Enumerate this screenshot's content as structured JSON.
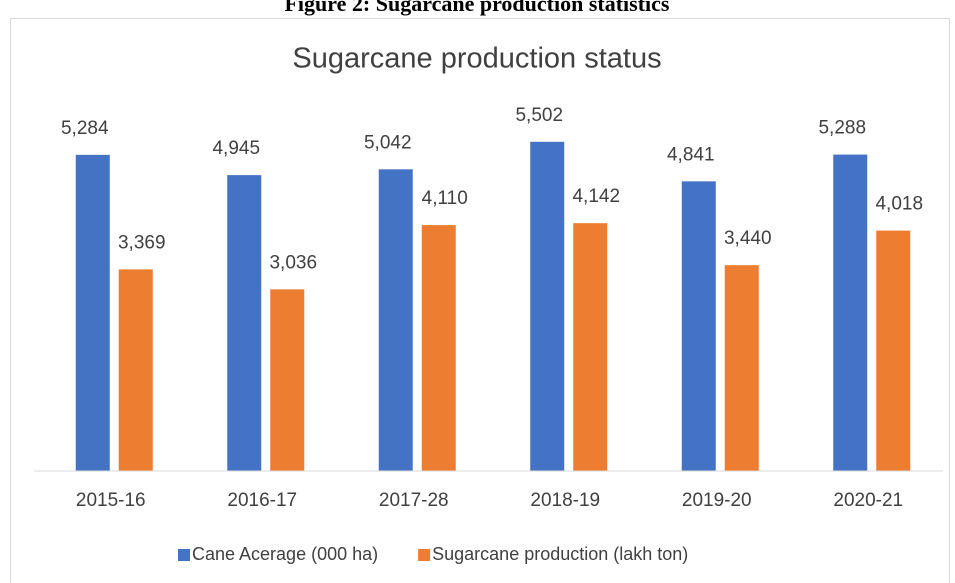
{
  "figure_title": "Figure 2: Sugarcane production statistics",
  "chart_data": {
    "type": "bar",
    "title": "Sugarcane production status",
    "categories": [
      "2015-16",
      "2016-17",
      "2017-28",
      "2018-19",
      "2019-20",
      "2020-21"
    ],
    "series": [
      {
        "name": "Cane Acerage (000 ha)",
        "color": "#4472c4",
        "values": [
          5284,
          4945,
          5042,
          5502,
          4841,
          5288
        ],
        "value_labels": [
          "5,284",
          "4,945",
          "5,042",
          "5,502",
          "4,841",
          "5,288"
        ]
      },
      {
        "name": "Sugarcane production (lakh ton)",
        "color": "#ed7d31",
        "values": [
          3369,
          3036,
          4110,
          4142,
          3440,
          4018
        ],
        "value_labels": [
          "3,369",
          "3,036",
          "4,110",
          "4,142",
          "3,440",
          "4,018"
        ]
      }
    ],
    "ylim": [
      0,
      6000
    ],
    "legend": "bottom"
  }
}
